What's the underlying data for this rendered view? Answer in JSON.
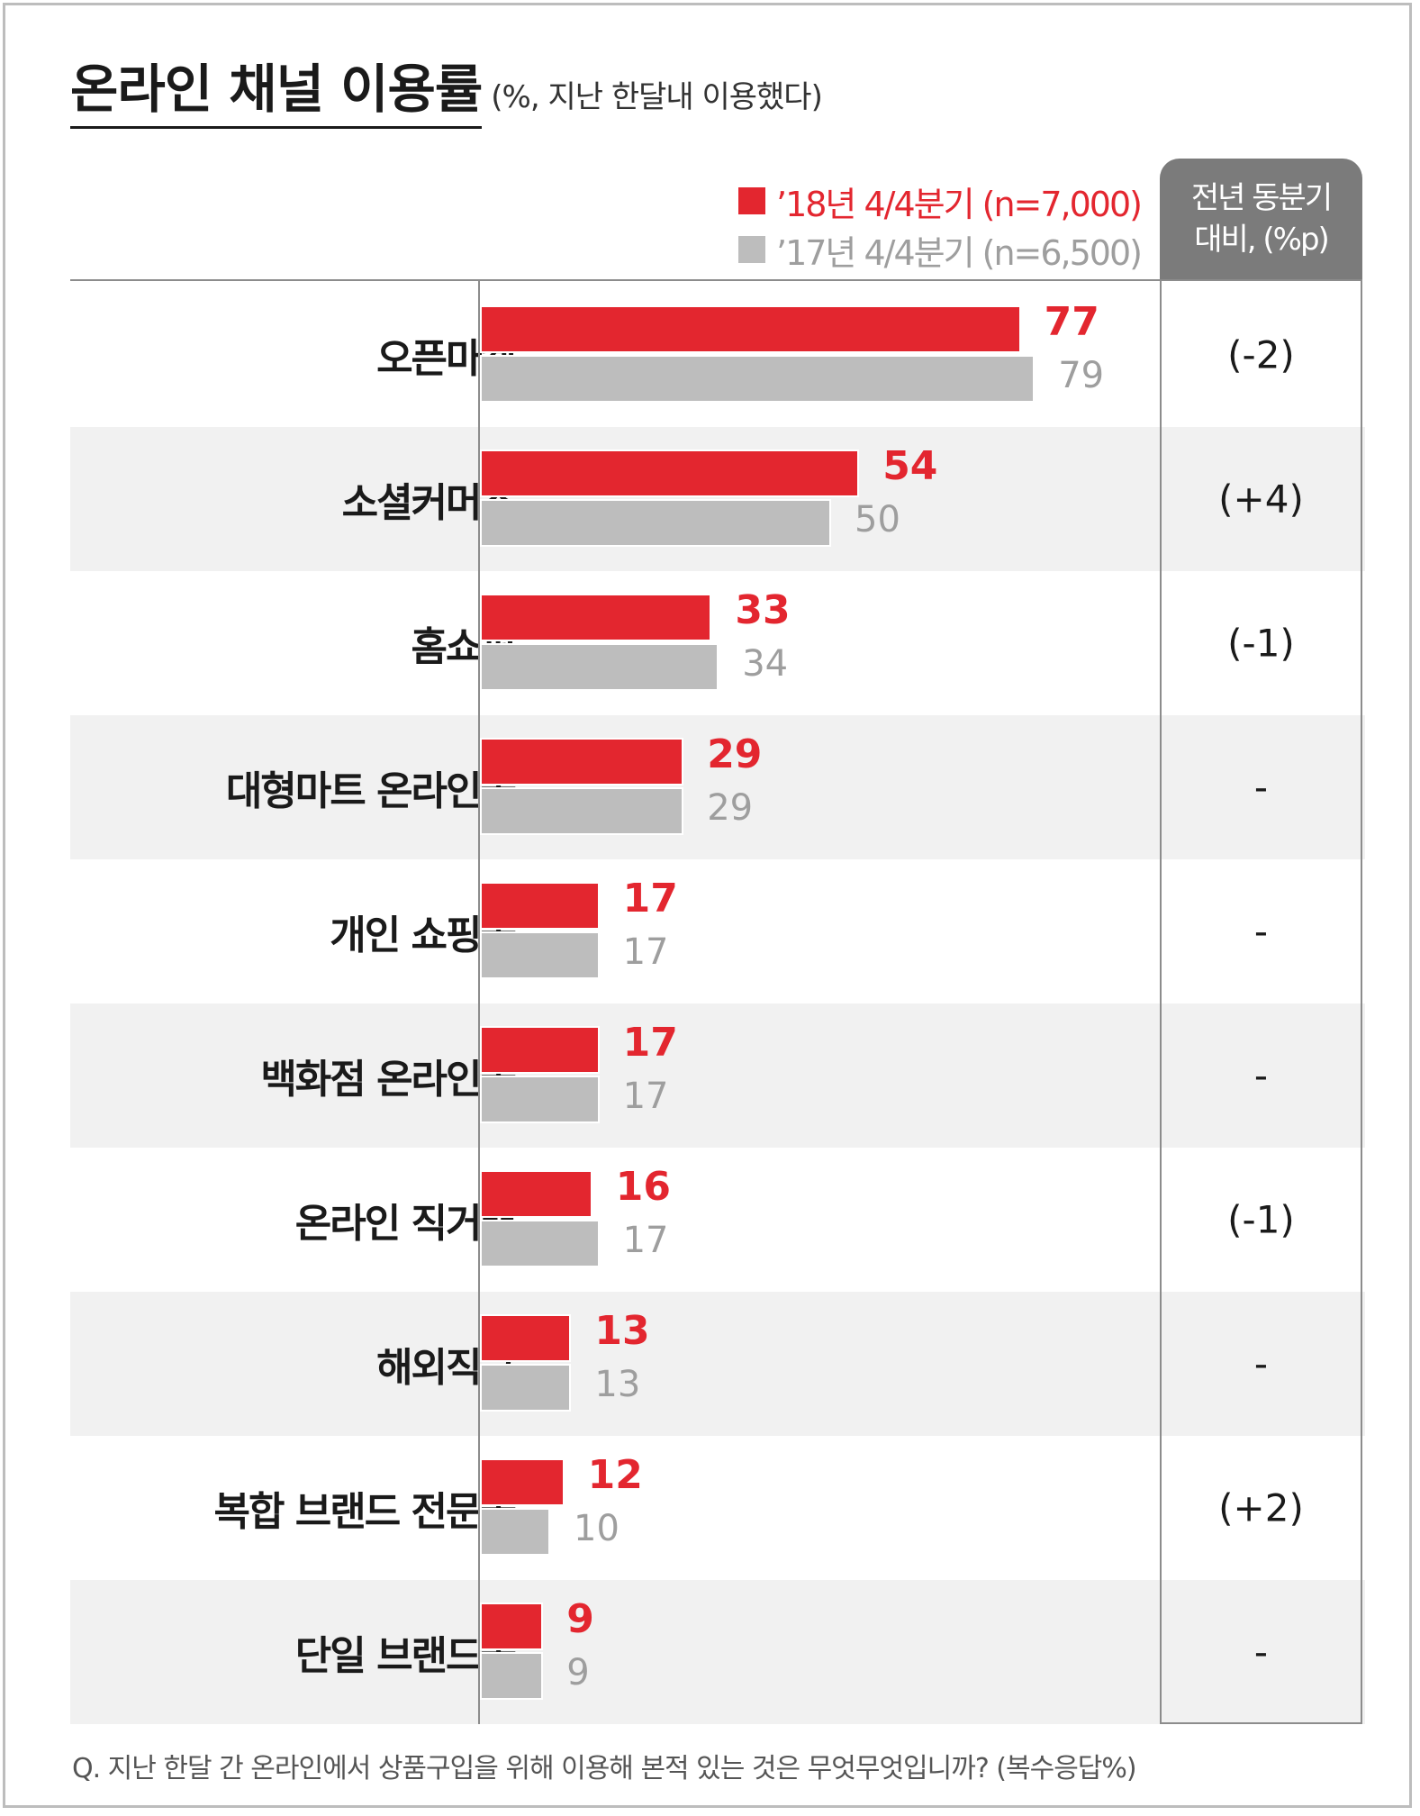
{
  "title": "온라인 채널 이용률",
  "subtitle": "(%, 지난 한달내 이용했다)",
  "legend": [
    {
      "label": "’18년 4/4분기 (n=7,000)",
      "color": "#e3262f"
    },
    {
      "label": "’17년 4/4분기 (n=6,500)",
      "color": "#bdbdbd"
    }
  ],
  "change_header": [
    "전년 동분기",
    "대비, (%p)"
  ],
  "colors": {
    "current": "#e3262f",
    "previous": "#bdbdbd",
    "header_bg": "#7b7b7b"
  },
  "chart_data": {
    "type": "bar",
    "orientation": "horizontal",
    "categories": [
      "오픈마켓",
      "소셜커머스",
      "홈쇼핑",
      "대형마트 온라인몰",
      "개인 쇼핑몰",
      "백화점 온라인몰",
      "온라인 직거래",
      "해외직구",
      "복합 브랜드 전문몰",
      "단일 브랜드몰"
    ],
    "series": [
      {
        "name": "’18년 4/4분기 (n=7,000)",
        "values": [
          77,
          54,
          33,
          29,
          17,
          17,
          16,
          13,
          12,
          9
        ]
      },
      {
        "name": "’17년 4/4분기 (n=6,500)",
        "values": [
          79,
          50,
          34,
          29,
          17,
          17,
          17,
          13,
          10,
          9
        ]
      }
    ],
    "change_labels": [
      "(-2)",
      "(+4)",
      "(-1)",
      "-",
      "-",
      "-",
      "(-1)",
      "-",
      "(+2)",
      "-"
    ],
    "xlim": [
      0,
      100
    ],
    "grid": false
  },
  "footnote": "Q. 지난 한달 간 온라인에서 상품구입을 위해 이용해 본적 있는 것은 무엇무엇입니까? (복수응답%)"
}
